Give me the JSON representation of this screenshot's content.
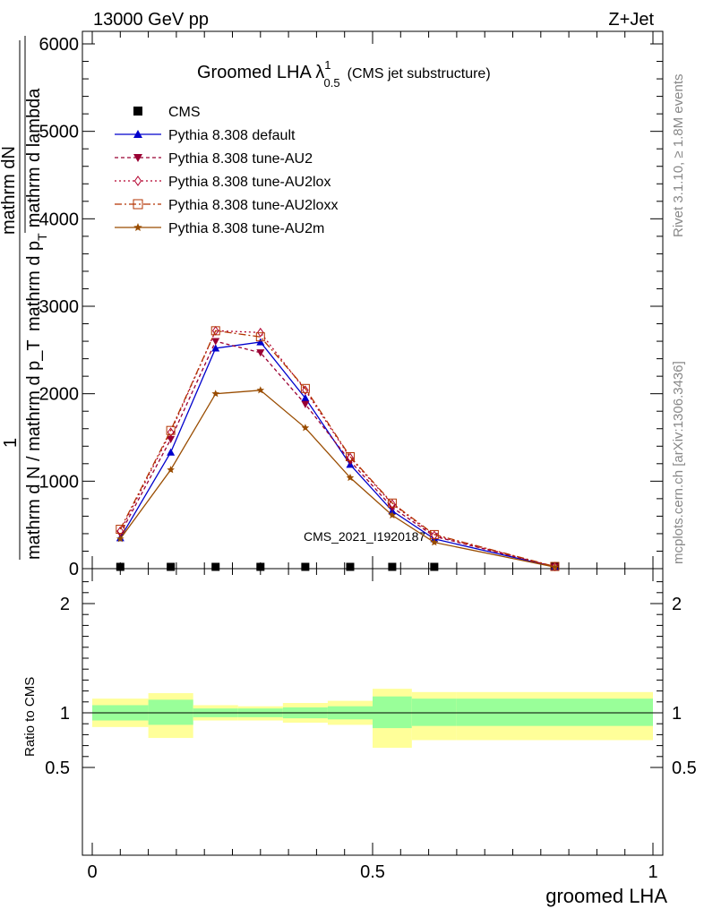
{
  "header": {
    "left": "13000 GeV pp",
    "right": "Z+Jet"
  },
  "title": {
    "main": "Groomed LHA ",
    "lambda": "λ",
    "sup": "1",
    "sub": "0.5",
    "suffix": "(CMS jet substructure)"
  },
  "side": {
    "rivet": "Rivet 3.1.10, ≥ 1.8M events",
    "mcplots": "mcplots.cern.ch [arXiv:1306.3436]"
  },
  "watermark": "CMS_2021_I1920187",
  "ylabel_main": {
    "one": "1",
    "frac_num": "mathrm dN / mathrm d p_T mathrm d lambda",
    "frac_den": "mathrm d N / mathrm d p_T",
    "num_top": "mathrm dN",
    "num_bot": "mathrm d p",
    "num_t": "T",
    "num_rest": "mathrm d lambda"
  },
  "ylabel_ratio": "Ratio to CMS",
  "xlabel": "groomed LHA",
  "colors": {
    "band_inner": "#99ff99",
    "band_outer": "#ffff99",
    "default": "#0000cc",
    "au2": "#990033",
    "au2lox": "#b3002d",
    "au2loxx": "#b33300",
    "au2m": "#994c00"
  },
  "chart_data": {
    "type": "line",
    "x_range": [
      0,
      1
    ],
    "main_ylim": [
      0,
      6200
    ],
    "main_yticks": [
      0,
      1000,
      2000,
      3000,
      4000,
      5000,
      6000
    ],
    "main_ytick_labels": [
      "0",
      "1000",
      "2000",
      "3000",
      "4000",
      "5000",
      "6000"
    ],
    "ratio_ylim": [
      0.4,
      2.3
    ],
    "ratio_yticks": [
      0.5,
      1,
      2
    ],
    "ratio_ytick_labels": [
      "0.5",
      "1",
      "2"
    ],
    "xticks": [
      0,
      0.5,
      1
    ],
    "xtick_labels": [
      "0",
      "0.5",
      "1"
    ],
    "bin_edges": [
      0,
      0.1,
      0.18,
      0.26,
      0.34,
      0.42,
      0.5,
      0.57,
      0.65,
      1.0
    ],
    "x": [
      0.05,
      0.14,
      0.22,
      0.3,
      0.38,
      0.46,
      0.535,
      0.61,
      0.825
    ],
    "legend_position": "top-left",
    "series": [
      {
        "name": "CMS",
        "key": "cms",
        "values": [
          5,
          5,
          5,
          5,
          5,
          5,
          5,
          5,
          5
        ]
      },
      {
        "name": "Pythia 8.308 default",
        "key": "default",
        "values": [
          350,
          1330,
          2520,
          2590,
          1950,
          1190,
          660,
          340,
          20
        ]
      },
      {
        "name": "Pythia 8.308 tune-AU2",
        "key": "au2",
        "values": [
          400,
          1480,
          2600,
          2470,
          1880,
          1230,
          700,
          370,
          22
        ]
      },
      {
        "name": "Pythia 8.308 tune-AU2lox",
        "key": "au2lox",
        "values": [
          430,
          1560,
          2720,
          2700,
          2040,
          1270,
          740,
          380,
          24
        ]
      },
      {
        "name": "Pythia 8.308 tune-AU2loxx",
        "key": "au2loxx",
        "values": [
          450,
          1580,
          2720,
          2650,
          2060,
          1280,
          750,
          390,
          25
        ]
      },
      {
        "name": "Pythia 8.308 tune-AU2m",
        "key": "au2m",
        "values": [
          340,
          1130,
          2000,
          2040,
          1610,
          1040,
          610,
          300,
          18
        ]
      }
    ],
    "ratio_bands": {
      "inner_lo": [
        0.93,
        0.89,
        0.96,
        0.96,
        0.95,
        0.94,
        0.86,
        0.88,
        0.88
      ],
      "inner_hi": [
        1.07,
        1.12,
        1.04,
        1.04,
        1.05,
        1.06,
        1.15,
        1.13,
        1.13
      ],
      "outer_lo": [
        0.87,
        0.77,
        0.93,
        0.93,
        0.91,
        0.89,
        0.68,
        0.75,
        0.75
      ],
      "outer_hi": [
        1.13,
        1.18,
        1.07,
        1.06,
        1.09,
        1.11,
        1.22,
        1.19,
        1.19
      ]
    }
  }
}
